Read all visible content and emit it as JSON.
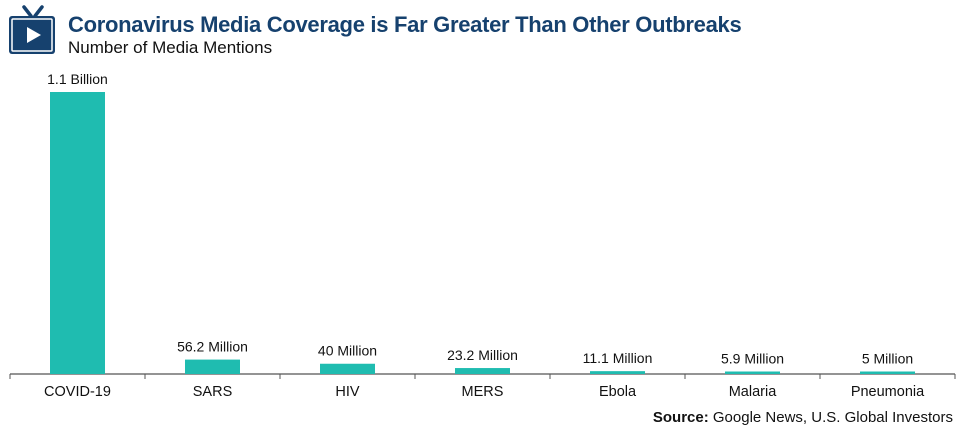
{
  "header": {
    "title": "Coronavirus Media Coverage is Far Greater Than Other Outbreaks",
    "subtitle": "Number of Media Mentions",
    "icon": "tv-play-icon"
  },
  "colors": {
    "bar": "#1fbcb0",
    "title": "#16416e",
    "icon": "#16416e",
    "axis": "#555555"
  },
  "chart_data": {
    "type": "bar",
    "title": "Coronavirus Media Coverage is Far Greater Than Other Outbreaks",
    "subtitle": "Number of Media Mentions",
    "categories": [
      "COVID-19",
      "SARS",
      "HIV",
      "MERS",
      "Ebola",
      "Malaria",
      "Pneumonia"
    ],
    "values": [
      1100,
      56.2,
      40,
      23.2,
      11.1,
      5.9,
      5
    ],
    "data_labels": [
      "1.1 Billion",
      "56.2 Million",
      "40 Million",
      "23.2 Million",
      "11.1 Million",
      "5.9 Million",
      "5 Million"
    ],
    "unit": "Millions of mentions",
    "xlabel": "",
    "ylabel": "",
    "ylim": [
      0,
      1100
    ],
    "grid": false,
    "legend": "none"
  },
  "source": {
    "label": "Source:",
    "text": " Google News, U.S. Global Investors"
  }
}
